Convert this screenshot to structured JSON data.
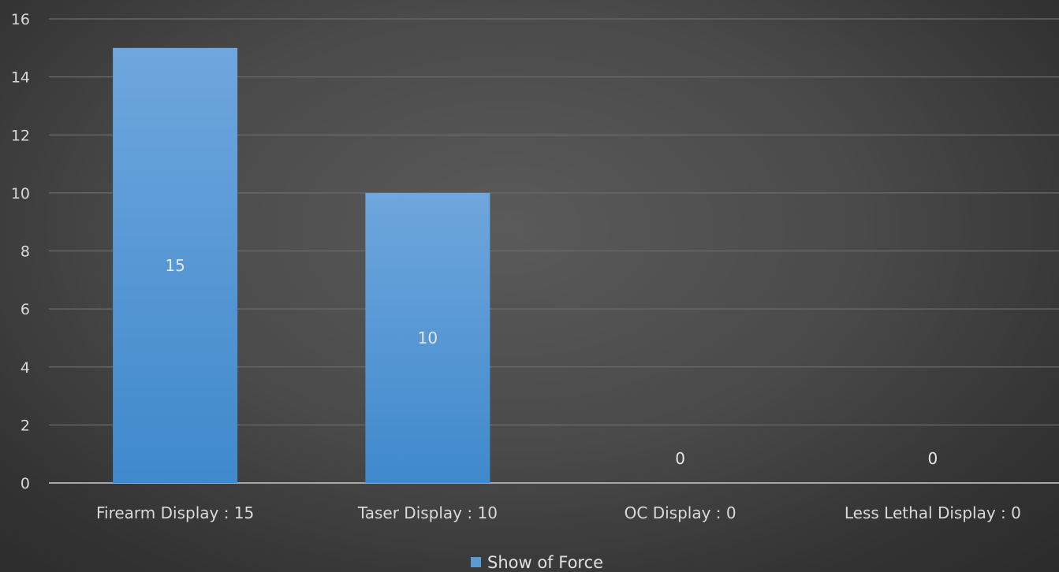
{
  "chart_data": {
    "type": "bar",
    "categories": [
      "Firearm Display : 15",
      "Taser Display : 10",
      "OC Display : 0",
      "Less Lethal Display : 0"
    ],
    "series": [
      {
        "name": "Show of Force",
        "values": [
          15,
          10,
          0,
          0
        ],
        "color": "#5b9bd5"
      }
    ],
    "data_labels": [
      "15",
      "10",
      "0",
      "0"
    ],
    "yticks": [
      0,
      2,
      4,
      6,
      8,
      10,
      12,
      14,
      16
    ],
    "ylim": [
      0,
      16
    ],
    "grid": true,
    "legend_position": "bottom"
  }
}
